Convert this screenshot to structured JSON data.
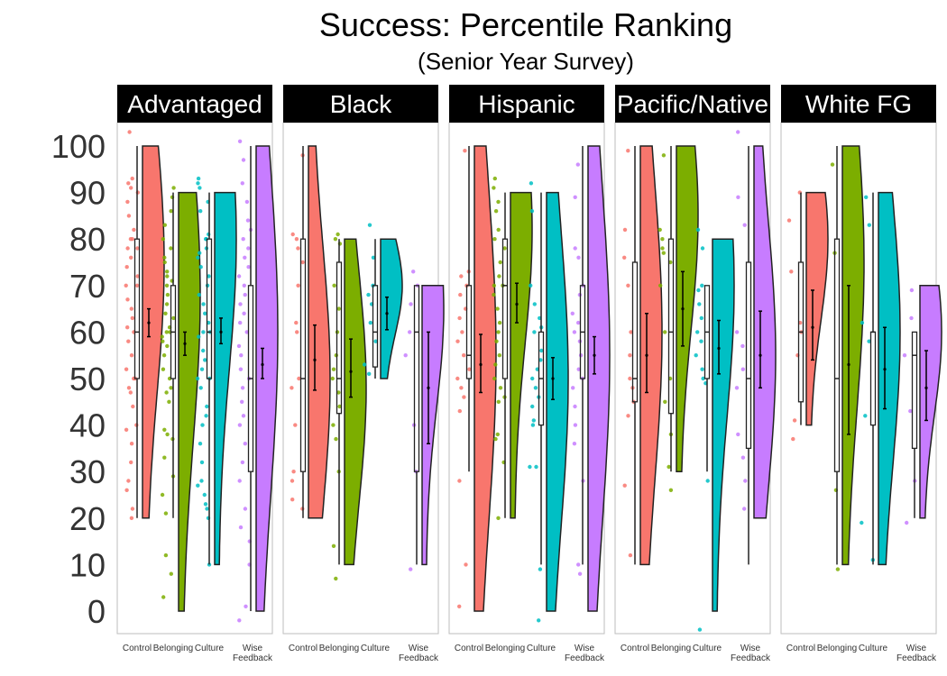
{
  "chart_data": {
    "type": "raincloud",
    "title": "Success: Percentile Ranking",
    "subtitle": "(Senior Year Survey)",
    "xlabel": "",
    "ylabel": "",
    "ylim": [
      -5,
      105
    ],
    "y_ticks": [
      0,
      10,
      20,
      30,
      40,
      50,
      60,
      70,
      80,
      90,
      100
    ],
    "categories": [
      "Control",
      "Belonging",
      "Culture",
      "Wise\nFeedback"
    ],
    "category_colors": [
      "#F8766D",
      "#7CAE00",
      "#00BFC4",
      "#C77CFF"
    ],
    "grid": false,
    "legend": "none",
    "facets": [
      {
        "label": "Advantaged",
        "groups": [
          {
            "category": "Control",
            "box": {
              "min": 20,
              "q1": 50,
              "median": 60,
              "q3": 80,
              "max": 100
            },
            "mean": 62,
            "ci": [
              59,
              65
            ],
            "violin": {
              "min": 20,
              "max": 100,
              "peak": 75
            },
            "points": [
              20,
              22,
              26,
              28,
              32,
              36,
              39,
              40,
              44,
              47,
              48,
              50,
              50,
              52,
              55,
              58,
              60,
              61,
              63,
              65,
              67,
              70,
              70,
              72,
              74,
              76,
              78,
              78,
              80,
              80,
              82,
              85,
              88,
              90,
              91,
              92,
              93,
              103
            ]
          },
          {
            "category": "Belonging",
            "box": {
              "min": 20,
              "q1": 50,
              "median": 60,
              "q3": 70,
              "max": 90
            },
            "mean": 57.5,
            "ci": [
              55,
              60
            ],
            "violin": {
              "min": 0,
              "max": 90,
              "peak": 68
            },
            "points": [
              3,
              8,
              12,
              21,
              25,
              29,
              33,
              37,
              38,
              39,
              45,
              47,
              48,
              50,
              52,
              55,
              57,
              58,
              59,
              60,
              60,
              61,
              63,
              64,
              66,
              68,
              70,
              71,
              72,
              73,
              75,
              76,
              78,
              80,
              83,
              86,
              89,
              91
            ]
          },
          {
            "category": "Culture",
            "box": {
              "min": 10,
              "q1": 50,
              "median": 60,
              "q3": 80,
              "max": 90
            },
            "mean": 60,
            "ci": [
              57.5,
              63
            ],
            "violin": {
              "min": 10,
              "max": 90,
              "peak": 80
            },
            "points": [
              10,
              20,
              22,
              23,
              25,
              27,
              28,
              32,
              36,
              40,
              42,
              44,
              48,
              50,
              50,
              52,
              54,
              56,
              59,
              60,
              60,
              62,
              64,
              66,
              68,
              70,
              72,
              74,
              76,
              77,
              78,
              80,
              80,
              81,
              86,
              88,
              91,
              92,
              93
            ]
          },
          {
            "category": "Wise\nFeedback",
            "box": {
              "min": 0,
              "q1": 30,
              "median": 50,
              "q3": 70,
              "max": 100
            },
            "mean": 53,
            "ci": [
              50,
              56.5
            ],
            "violin": {
              "min": 0,
              "max": 100,
              "peak": 60
            },
            "points": [
              -2,
              1,
              10,
              15,
              18,
              22,
              28,
              32,
              36,
              40,
              42,
              45,
              48,
              50,
              52,
              55,
              57,
              60,
              62,
              64,
              66,
              68,
              70,
              72,
              74,
              76,
              78,
              80,
              82,
              84,
              88,
              92,
              97,
              101
            ]
          }
        ]
      },
      {
        "label": "Black",
        "groups": [
          {
            "category": "Control",
            "box": {
              "min": 20,
              "q1": 30,
              "median": 50,
              "q3": 80,
              "max": 100
            },
            "mean": 54,
            "ci": [
              47.5,
              61.5
            ],
            "violin": {
              "min": 20,
              "max": 100,
              "peak": 50
            },
            "points": [
              22,
              24,
              28,
              30,
              40,
              48,
              50,
              60,
              62,
              70,
              75,
              78,
              80,
              81,
              98
            ]
          },
          {
            "category": "Belonging",
            "box": {
              "min": 10,
              "q1": 42.5,
              "median": 50,
              "q3": 75,
              "max": 80
            },
            "mean": 51.5,
            "ci": [
              46,
              58.5
            ],
            "violin": {
              "min": 10,
              "max": 80,
              "peak": 48
            },
            "points": [
              7,
              14,
              30,
              37,
              40,
              44,
              47,
              50,
              52,
              55,
              60,
              65,
              70,
              79,
              80,
              81
            ]
          },
          {
            "category": "Culture",
            "box": {
              "min": 50,
              "q1": 52.5,
              "median": 60,
              "q3": 70,
              "max": 80
            },
            "mean": 64,
            "ci": [
              60.5,
              67.5
            ],
            "violin": {
              "min": 50,
              "max": 80,
              "peak": 70
            },
            "points": [
              51,
              53,
              58,
              62,
              66,
              68,
              70,
              76,
              83
            ]
          },
          {
            "category": "Wise\nFeedback",
            "box": {
              "min": 10,
              "q1": 30,
              "median": 60,
              "q3": 70,
              "max": 70
            },
            "mean": 48,
            "ci": [
              36,
              60
            ],
            "violin": {
              "min": 10,
              "max": 70,
              "peak": 65
            },
            "points": [
              9,
              30,
              40,
              55,
              60,
              66,
              70,
              73
            ]
          }
        ]
      },
      {
        "label": "Hispanic",
        "groups": [
          {
            "category": "Control",
            "box": {
              "min": 30,
              "q1": 50,
              "median": 55,
              "q3": 70,
              "max": 100
            },
            "mean": 53,
            "ci": [
              47,
              59.5
            ],
            "violin": {
              "min": 0,
              "max": 100,
              "peak": 55
            },
            "points": [
              1,
              10,
              28,
              43,
              46,
              48,
              50,
              52,
              55,
              58,
              60,
              63,
              65,
              68,
              70,
              72,
              73,
              99
            ]
          },
          {
            "category": "Belonging",
            "box": {
              "min": 20,
              "q1": 50,
              "median": 70,
              "q3": 80,
              "max": 90
            },
            "mean": 66,
            "ci": [
              62,
              70.5
            ],
            "violin": {
              "min": 20,
              "max": 90,
              "peak": 82
            },
            "points": [
              20,
              32,
              37,
              38,
              45,
              46,
              48,
              50,
              53,
              55,
              58,
              60,
              62,
              65,
              68,
              70,
              70,
              72,
              75,
              78,
              80,
              82,
              86,
              88,
              91,
              93
            ]
          },
          {
            "category": "Culture",
            "box": {
              "min": 10,
              "q1": 40,
              "median": 50,
              "q3": 60,
              "max": 90
            },
            "mean": 50,
            "ci": [
              45.5,
              54.5
            ],
            "violin": {
              "min": 0,
              "max": 90,
              "peak": 50
            },
            "points": [
              -2,
              9,
              31,
              31,
              40,
              41,
              44,
              46,
              48,
              50,
              52,
              54,
              56,
              60,
              61,
              63,
              66,
              70,
              86,
              92
            ]
          },
          {
            "category": "Wise\nFeedback",
            "box": {
              "min": 10,
              "q1": 50,
              "median": 60,
              "q3": 70,
              "max": 100
            },
            "mean": 55,
            "ci": [
              51,
              59
            ],
            "violin": {
              "min": 0,
              "max": 100,
              "peak": 55
            },
            "points": [
              8,
              10,
              28,
              36,
              40,
              44,
              48,
              50,
              52,
              55,
              58,
              60,
              62,
              64,
              68,
              70,
              76,
              78,
              89,
              96
            ]
          }
        ]
      },
      {
        "label": "Pacific/Native",
        "groups": [
          {
            "category": "Control",
            "box": {
              "min": 10,
              "q1": 45,
              "median": 50,
              "q3": 75,
              "max": 100
            },
            "mean": 55,
            "ci": [
              47,
              64
            ],
            "violin": {
              "min": 10,
              "max": 100,
              "peak": 60
            },
            "points": [
              12,
              27,
              42,
              45,
              48,
              50,
              55,
              60,
              70,
              76,
              82,
              99
            ]
          },
          {
            "category": "Belonging",
            "box": {
              "min": 30,
              "q1": 42.5,
              "median": 60,
              "q3": 80,
              "max": 100
            },
            "mean": 65,
            "ci": [
              57,
              73
            ],
            "violin": {
              "min": 30,
              "max": 100,
              "peak": 85
            },
            "points": [
              26,
              31,
              38,
              45,
              50,
              60,
              70,
              75,
              77,
              78,
              80,
              82,
              98
            ]
          },
          {
            "category": "Culture",
            "box": {
              "min": 30,
              "q1": 50,
              "median": 60,
              "q3": 70,
              "max": 70
            },
            "mean": 56.5,
            "ci": [
              51,
              62.5
            ],
            "violin": {
              "min": 0,
              "max": 80,
              "peak": 70
            },
            "points": [
              -4,
              28,
              49,
              50,
              52,
              55,
              58,
              60,
              63,
              66,
              69,
              70,
              78,
              82
            ]
          },
          {
            "category": "Wise\nFeedback",
            "box": {
              "min": 10,
              "q1": 35,
              "median": 50,
              "q3": 75,
              "max": 100
            },
            "mean": 55,
            "ci": [
              48,
              64.5
            ],
            "violin": {
              "min": 20,
              "max": 100,
              "peak": 55
            },
            "points": [
              22,
              28,
              33,
              38,
              48,
              52,
              57,
              60,
              83,
              89,
              103
            ]
          }
        ]
      },
      {
        "label": "White FG",
        "groups": [
          {
            "category": "Control",
            "box": {
              "min": 40,
              "q1": 45,
              "median": 60,
              "q3": 75,
              "max": 90
            },
            "mean": 61,
            "ci": [
              54,
              69
            ],
            "violin": {
              "min": 40,
              "max": 90,
              "peak": 80
            },
            "points": [
              37,
              41,
              55,
              60,
              62,
              73,
              84,
              90
            ]
          },
          {
            "category": "Belonging",
            "box": {
              "min": 10,
              "q1": 30,
              "median": 50,
              "q3": 80,
              "max": 100
            },
            "mean": 53,
            "ci": [
              38,
              70
            ],
            "violin": {
              "min": 10,
              "max": 100,
              "peak": 75
            },
            "points": [
              9,
              26,
              77,
              96
            ]
          },
          {
            "category": "Culture",
            "box": {
              "min": 10,
              "q1": 40,
              "median": 60,
              "q3": 60,
              "max": 90
            },
            "mean": 52,
            "ci": [
              43.5,
              61
            ],
            "violin": {
              "min": 10,
              "max": 90,
              "peak": 60
            },
            "points": [
              11,
              19,
              42,
              58,
              62,
              83,
              89
            ]
          },
          {
            "category": "Wise\nFeedback",
            "box": {
              "min": 20,
              "q1": 35,
              "median": 55,
              "q3": 60,
              "max": 60
            },
            "mean": 48,
            "ci": [
              41,
              56
            ],
            "violin": {
              "min": 20,
              "max": 70,
              "peak": 60
            },
            "points": [
              19,
              28,
              43,
              55,
              63,
              69
            ]
          }
        ]
      }
    ]
  }
}
